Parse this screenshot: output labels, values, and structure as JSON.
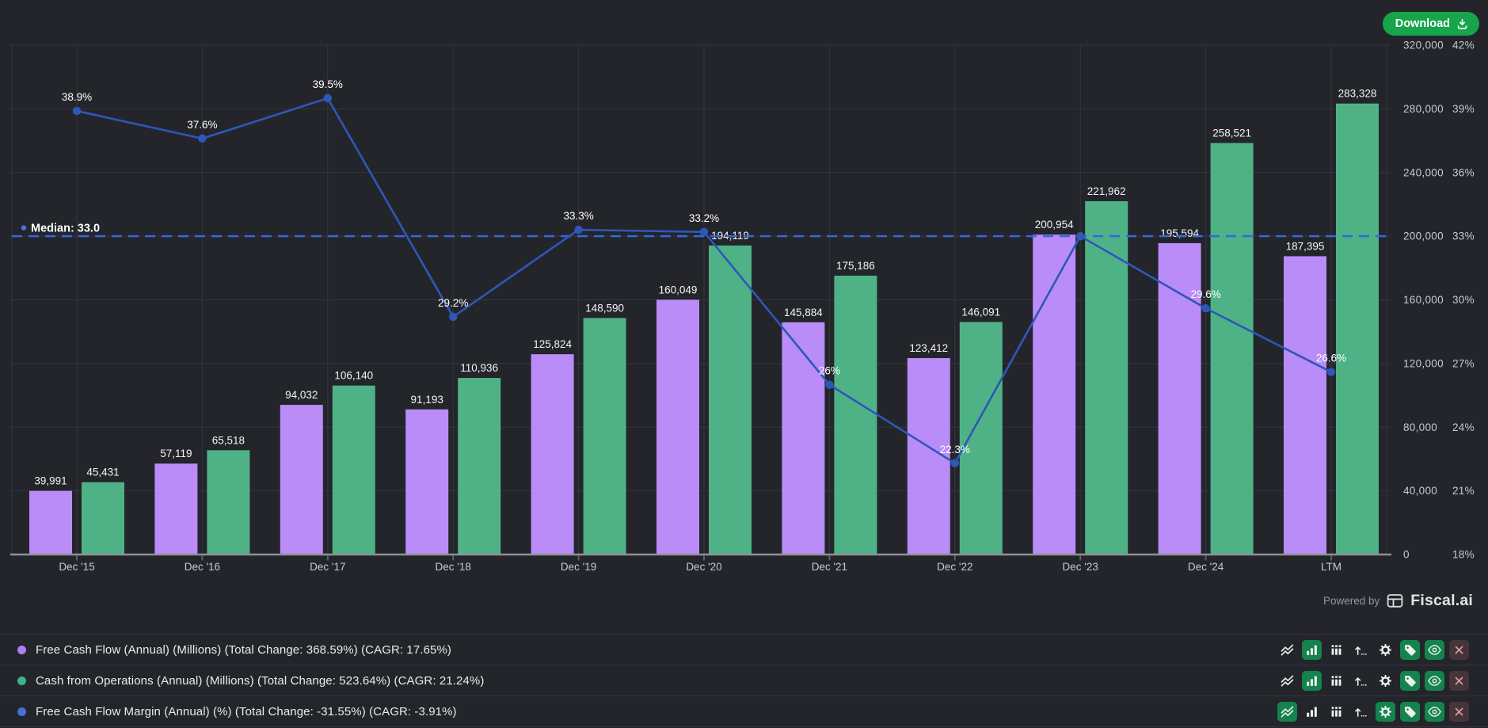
{
  "app": {
    "background": "#23252b"
  },
  "toolbar": {
    "download_label": "Download"
  },
  "branding": {
    "powered_by": "Powered by",
    "brand": "Fiscal.ai"
  },
  "chart_data": {
    "type": "combo-bar-line",
    "categories": [
      "Dec '15",
      "Dec '16",
      "Dec '17",
      "Dec '18",
      "Dec '19",
      "Dec '20",
      "Dec '21",
      "Dec '22",
      "Dec '23",
      "Dec '24",
      "LTM"
    ],
    "series": [
      {
        "name": "Free Cash Flow (Annual) (Millions)",
        "type": "bar",
        "color": "#b98cf7",
        "values": [
          39991,
          57119,
          94032,
          91193,
          125824,
          160049,
          145884,
          123412,
          200954,
          195594,
          187395
        ],
        "value_labels": [
          "39,991",
          "57,119",
          "94,032",
          "91,193",
          "125,824",
          "160,049",
          "145,884",
          "123,412",
          "200,954",
          "195,594",
          "187,395"
        ]
      },
      {
        "name": "Cash from Operations (Annual) (Millions)",
        "type": "bar",
        "color": "#4fb287",
        "values": [
          45431,
          65518,
          106140,
          110936,
          148590,
          194119,
          175186,
          146091,
          221962,
          258521,
          283328
        ],
        "value_labels": [
          "45,431",
          "65,518",
          "106,140",
          "110,936",
          "148,590",
          "194,119",
          "175,186",
          "146,091",
          "221,962",
          "258,521",
          "283,328"
        ]
      },
      {
        "name": "Free Cash Flow Margin (Annual) (%)",
        "type": "line",
        "color": "#2e57b8",
        "values": [
          38.9,
          37.6,
          39.5,
          29.2,
          33.3,
          33.2,
          26,
          22.3,
          33.0,
          29.6,
          26.6
        ],
        "point_labels": [
          "38.9%",
          "37.6%",
          "39.5%",
          "29.2%",
          "33.3%",
          "33.2%",
          "26%",
          "22.3%",
          "",
          "29.6%",
          "26.6%"
        ]
      }
    ],
    "value_axis": {
      "min": 0,
      "max": 320000,
      "tick_labels_top_to_bottom": [
        "320,000",
        "280,000",
        "240,000",
        "200,000",
        "160,000",
        "120,000",
        "80,000",
        "40,000",
        "0"
      ]
    },
    "pct_axis": {
      "min": 18,
      "max": 42,
      "tick_labels_top_to_bottom": [
        "42%",
        "39%",
        "36%",
        "33%",
        "30%",
        "27%",
        "24%",
        "21%",
        "18%"
      ]
    },
    "median": {
      "value": 33.0,
      "label": "Median: 33.0"
    },
    "grid": true,
    "legend_position": "bottom"
  },
  "legend": {
    "rows": [
      {
        "dot_color": "#b07ef2",
        "label": "Free Cash Flow (Annual) (Millions) (Total Change: 368.59%) (CAGR: 17.65%)",
        "icons": {
          "line_chart": false,
          "bar_chart": true,
          "grouped_bars": false,
          "scale": false,
          "gear": false,
          "tag": true,
          "eye": true,
          "remove": "danger"
        }
      },
      {
        "dot_color": "#3cb488",
        "label": "Cash from Operations (Annual) (Millions) (Total Change: 523.64%) (CAGR: 21.24%)",
        "icons": {
          "line_chart": false,
          "bar_chart": true,
          "grouped_bars": false,
          "scale": false,
          "gear": false,
          "tag": true,
          "eye": true,
          "remove": "danger"
        }
      },
      {
        "dot_color": "#4a6fd4",
        "label": "Free Cash Flow Margin (Annual) (%) (Total Change: -31.55%) (CAGR: -3.91%)",
        "icons": {
          "line_chart": true,
          "bar_chart": false,
          "grouped_bars": false,
          "scale": false,
          "gear": true,
          "tag": true,
          "eye": true,
          "remove": "danger"
        }
      }
    ]
  },
  "colors": {
    "bar_purple": "#b98cf7",
    "bar_green": "#4fb287",
    "line_blue": "#2e57b8",
    "median_blue": "#3766dd",
    "download_green": "#17a44b",
    "icon_active_bg": "#15834e",
    "icon_danger_bg": "#46343a",
    "grid": "#34373e",
    "axis_line": "#8d9298",
    "axis_text": "#c7cad0",
    "bar_label_text": "#f3f4f6"
  }
}
